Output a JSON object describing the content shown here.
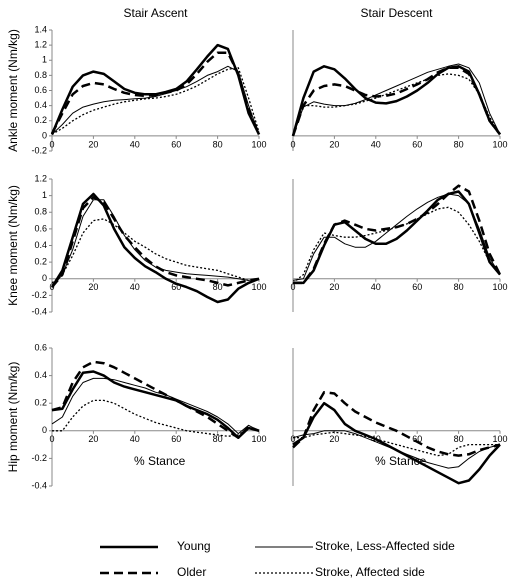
{
  "chart_data": [
    {
      "type": "line",
      "title": "Stair Ascent",
      "y_label": "Ankle moment (Nm/kg)",
      "x": [
        0,
        5,
        10,
        15,
        20,
        25,
        30,
        35,
        40,
        45,
        50,
        55,
        60,
        65,
        70,
        75,
        80,
        85,
        90,
        95,
        100
      ],
      "xlim": [
        0,
        100
      ],
      "xticks": [
        0,
        20,
        40,
        60,
        80,
        100
      ],
      "ylim": [
        -0.2,
        1.4
      ],
      "yticks": [
        -0.2,
        0,
        0.2,
        0.4,
        0.6,
        0.8,
        1,
        1.2,
        1.4
      ],
      "series": [
        {
          "name": "Young",
          "color": "#000000",
          "dash": "solid",
          "width": 2.5,
          "values": [
            0.02,
            0.35,
            0.65,
            0.8,
            0.85,
            0.82,
            0.72,
            0.62,
            0.57,
            0.55,
            0.55,
            0.58,
            0.62,
            0.72,
            0.88,
            1.05,
            1.2,
            1.15,
            0.8,
            0.3,
            0.02
          ]
        },
        {
          "name": "Older",
          "color": "#000000",
          "dash": "dashed",
          "width": 2.5,
          "values": [
            0.03,
            0.3,
            0.55,
            0.66,
            0.7,
            0.68,
            0.62,
            0.57,
            0.54,
            0.53,
            0.54,
            0.57,
            0.6,
            0.68,
            0.82,
            0.98,
            1.1,
            1.1,
            0.82,
            0.35,
            0.02
          ]
        },
        {
          "name": "Stroke, Less-Affected side",
          "color": "#000000",
          "dash": "solid",
          "width": 1,
          "values": [
            0.02,
            0.15,
            0.3,
            0.38,
            0.42,
            0.45,
            0.47,
            0.48,
            0.49,
            0.5,
            0.52,
            0.56,
            0.6,
            0.65,
            0.72,
            0.8,
            0.85,
            0.92,
            0.85,
            0.4,
            0.02
          ]
        },
        {
          "name": "Stroke, Affected side",
          "color": "#000000",
          "dash": "dotted",
          "width": 1.3,
          "values": [
            0.02,
            0.1,
            0.2,
            0.28,
            0.34,
            0.38,
            0.42,
            0.45,
            0.47,
            0.49,
            0.5,
            0.52,
            0.55,
            0.6,
            0.66,
            0.74,
            0.82,
            0.88,
            0.9,
            0.5,
            0.05
          ]
        }
      ]
    },
    {
      "type": "line",
      "title": "Stair Descent",
      "x": [
        0,
        5,
        10,
        15,
        20,
        25,
        30,
        35,
        40,
        45,
        50,
        55,
        60,
        65,
        70,
        75,
        80,
        85,
        90,
        95,
        100
      ],
      "xlim": [
        0,
        100
      ],
      "xticks": [
        0,
        20,
        40,
        60,
        80,
        100
      ],
      "ylim": [
        -0.2,
        1.4
      ],
      "series": [
        {
          "color": "#000000",
          "dash": "solid",
          "width": 2.5,
          "values": [
            0,
            0.5,
            0.85,
            0.92,
            0.88,
            0.76,
            0.62,
            0.5,
            0.44,
            0.43,
            0.46,
            0.52,
            0.6,
            0.7,
            0.82,
            0.9,
            0.92,
            0.85,
            0.55,
            0.2,
            0.02
          ]
        },
        {
          "color": "#000000",
          "dash": "dashed",
          "width": 2.5,
          "values": [
            0,
            0.4,
            0.6,
            0.66,
            0.68,
            0.66,
            0.6,
            0.54,
            0.52,
            0.53,
            0.56,
            0.62,
            0.68,
            0.75,
            0.84,
            0.9,
            0.9,
            0.82,
            0.55,
            0.2,
            0.02
          ]
        },
        {
          "color": "#000000",
          "dash": "solid",
          "width": 1,
          "values": [
            0,
            0.38,
            0.45,
            0.42,
            0.4,
            0.4,
            0.43,
            0.48,
            0.54,
            0.6,
            0.66,
            0.72,
            0.78,
            0.84,
            0.88,
            0.92,
            0.95,
            0.9,
            0.7,
            0.3,
            0.02
          ]
        },
        {
          "color": "#000000",
          "dash": "dotted",
          "width": 1.3,
          "values": [
            0,
            0.4,
            0.4,
            0.38,
            0.38,
            0.4,
            0.42,
            0.46,
            0.5,
            0.55,
            0.6,
            0.65,
            0.7,
            0.75,
            0.8,
            0.82,
            0.8,
            0.75,
            0.55,
            0.25,
            0.02
          ]
        }
      ]
    },
    {
      "type": "line",
      "y_label": "Knee moment (Nm/kg)",
      "x": [
        0,
        5,
        10,
        15,
        20,
        25,
        30,
        35,
        40,
        45,
        50,
        55,
        60,
        65,
        70,
        75,
        80,
        85,
        90,
        95,
        100
      ],
      "xlim": [
        0,
        100
      ],
      "xticks": [
        0,
        20,
        40,
        60,
        80,
        100
      ],
      "ylim": [
        -0.4,
        1.2
      ],
      "yticks": [
        -0.4,
        -0.2,
        0,
        0.2,
        0.4,
        0.6,
        0.8,
        1,
        1.2
      ],
      "series": [
        {
          "color": "#000000",
          "dash": "solid",
          "width": 2.5,
          "values": [
            -0.1,
            0.1,
            0.5,
            0.9,
            1.02,
            0.88,
            0.6,
            0.38,
            0.25,
            0.15,
            0.08,
            0,
            -0.06,
            -0.1,
            -0.15,
            -0.22,
            -0.28,
            -0.25,
            -0.12,
            -0.05,
            0
          ]
        },
        {
          "color": "#000000",
          "dash": "dashed",
          "width": 2.5,
          "values": [
            -0.1,
            0.05,
            0.45,
            0.85,
            0.98,
            0.92,
            0.72,
            0.52,
            0.38,
            0.25,
            0.15,
            0.08,
            0.04,
            0.02,
            0,
            -0.02,
            -0.05,
            -0.08,
            -0.05,
            -0.02,
            0
          ]
        },
        {
          "color": "#000000",
          "dash": "solid",
          "width": 1,
          "values": [
            -0.1,
            0.05,
            0.35,
            0.75,
            0.95,
            0.95,
            0.75,
            0.52,
            0.35,
            0.22,
            0.14,
            0.1,
            0.08,
            0.06,
            0.05,
            0.04,
            0.03,
            0.02,
            0,
            -0.02,
            0
          ]
        },
        {
          "color": "#000000",
          "dash": "dotted",
          "width": 1.3,
          "values": [
            -0.05,
            0.05,
            0.28,
            0.55,
            0.7,
            0.72,
            0.65,
            0.55,
            0.45,
            0.38,
            0.3,
            0.24,
            0.2,
            0.16,
            0.14,
            0.12,
            0.1,
            0.06,
            0.02,
            -0.02,
            0
          ]
        }
      ]
    },
    {
      "type": "line",
      "x": [
        0,
        5,
        10,
        15,
        20,
        25,
        30,
        35,
        40,
        45,
        50,
        55,
        60,
        65,
        70,
        75,
        80,
        85,
        90,
        95,
        100
      ],
      "xlim": [
        0,
        100
      ],
      "xticks": [
        0,
        20,
        40,
        60,
        80,
        100
      ],
      "ylim": [
        -0.4,
        1.2
      ],
      "series": [
        {
          "color": "#000000",
          "dash": "solid",
          "width": 2.5,
          "values": [
            -0.05,
            -0.05,
            0.1,
            0.4,
            0.65,
            0.68,
            0.58,
            0.48,
            0.42,
            0.42,
            0.48,
            0.58,
            0.7,
            0.82,
            0.95,
            1.02,
            1.05,
            0.9,
            0.55,
            0.2,
            0.05
          ]
        },
        {
          "color": "#000000",
          "dash": "dashed",
          "width": 2.5,
          "values": [
            -0.05,
            -0.05,
            0.12,
            0.42,
            0.65,
            0.7,
            0.65,
            0.6,
            0.58,
            0.6,
            0.62,
            0.66,
            0.72,
            0.8,
            0.9,
            1.02,
            1.12,
            1.05,
            0.7,
            0.3,
            0.05
          ]
        },
        {
          "color": "#000000",
          "dash": "solid",
          "width": 1,
          "values": [
            -0.02,
            0,
            0.3,
            0.5,
            0.5,
            0.42,
            0.38,
            0.38,
            0.45,
            0.55,
            0.65,
            0.75,
            0.84,
            0.92,
            0.98,
            1.02,
            1,
            0.9,
            0.6,
            0.25,
            0.05
          ]
        },
        {
          "color": "#000000",
          "dash": "dotted",
          "width": 1.3,
          "values": [
            -0.05,
            0.05,
            0.35,
            0.55,
            0.52,
            0.5,
            0.5,
            0.52,
            0.55,
            0.58,
            0.62,
            0.66,
            0.72,
            0.78,
            0.84,
            0.86,
            0.8,
            0.65,
            0.45,
            0.2,
            0.05
          ]
        }
      ]
    },
    {
      "type": "line",
      "y_label": "Hip moment (Nm/kg)",
      "x_label": "% Stance",
      "x": [
        0,
        5,
        10,
        15,
        20,
        25,
        30,
        35,
        40,
        45,
        50,
        55,
        60,
        65,
        70,
        75,
        80,
        85,
        90,
        95,
        100
      ],
      "xlim": [
        0,
        100
      ],
      "xticks": [
        0,
        20,
        40,
        60,
        80,
        100
      ],
      "ylim": [
        -0.4,
        0.6
      ],
      "yticks": [
        -0.4,
        -0.2,
        0,
        0.2,
        0.4,
        0.6
      ],
      "series": [
        {
          "color": "#000000",
          "dash": "solid",
          "width": 2.5,
          "values": [
            0.15,
            0.16,
            0.3,
            0.42,
            0.43,
            0.4,
            0.35,
            0.32,
            0.3,
            0.28,
            0.26,
            0.24,
            0.22,
            0.18,
            0.15,
            0.12,
            0.08,
            0.02,
            -0.05,
            0.02,
            0
          ]
        },
        {
          "color": "#000000",
          "dash": "dashed",
          "width": 2.5,
          "values": [
            0.15,
            0.17,
            0.35,
            0.46,
            0.5,
            0.49,
            0.46,
            0.42,
            0.38,
            0.34,
            0.3,
            0.26,
            0.22,
            0.18,
            0.14,
            0.1,
            0.05,
            0,
            -0.05,
            0.03,
            0
          ]
        },
        {
          "color": "#000000",
          "dash": "solid",
          "width": 1,
          "values": [
            0.05,
            0.1,
            0.25,
            0.35,
            0.38,
            0.38,
            0.37,
            0.35,
            0.33,
            0.31,
            0.28,
            0.26,
            0.23,
            0.2,
            0.17,
            0.14,
            0.1,
            0.05,
            -0.02,
            0.04,
            0
          ]
        },
        {
          "color": "#000000",
          "dash": "dotted",
          "width": 1.3,
          "values": [
            0,
            0,
            0.1,
            0.18,
            0.22,
            0.22,
            0.2,
            0.16,
            0.12,
            0.09,
            0.06,
            0.04,
            0.02,
            0,
            -0.01,
            -0.02,
            -0.03,
            -0.04,
            -0.03,
            0.02,
            0
          ]
        }
      ]
    },
    {
      "type": "line",
      "x_label": "% Stance",
      "x": [
        0,
        5,
        10,
        15,
        20,
        25,
        30,
        35,
        40,
        45,
        50,
        55,
        60,
        65,
        70,
        75,
        80,
        85,
        90,
        95,
        100
      ],
      "xlim": [
        0,
        100
      ],
      "xticks": [
        0,
        20,
        40,
        60,
        80,
        100
      ],
      "ylim": [
        -0.4,
        0.6
      ],
      "series": [
        {
          "color": "#000000",
          "dash": "solid",
          "width": 2.5,
          "values": [
            -0.1,
            -0.05,
            0.1,
            0.2,
            0.15,
            0.05,
            0,
            -0.03,
            -0.06,
            -0.1,
            -0.14,
            -0.18,
            -0.22,
            -0.26,
            -0.3,
            -0.34,
            -0.38,
            -0.36,
            -0.28,
            -0.18,
            -0.1
          ]
        },
        {
          "color": "#000000",
          "dash": "dashed",
          "width": 2.5,
          "values": [
            -0.12,
            -0.05,
            0.15,
            0.28,
            0.27,
            0.2,
            0.14,
            0.1,
            0.06,
            0.03,
            0,
            -0.04,
            -0.08,
            -0.12,
            -0.15,
            -0.17,
            -0.18,
            -0.17,
            -0.14,
            -0.12,
            -0.1
          ]
        },
        {
          "color": "#000000",
          "dash": "solid",
          "width": 1,
          "values": [
            -0.05,
            -0.03,
            -0.02,
            0,
            0,
            0,
            -0.02,
            -0.05,
            -0.08,
            -0.11,
            -0.14,
            -0.17,
            -0.2,
            -0.23,
            -0.25,
            -0.27,
            -0.26,
            -0.2,
            -0.15,
            -0.12,
            -0.1
          ]
        },
        {
          "color": "#000000",
          "dash": "dotted",
          "width": 1.3,
          "values": [
            -0.05,
            -0.05,
            -0.03,
            -0.02,
            -0.01,
            -0.02,
            -0.03,
            -0.04,
            -0.06,
            -0.08,
            -0.1,
            -0.12,
            -0.14,
            -0.16,
            -0.18,
            -0.17,
            -0.12,
            -0.1,
            -0.1,
            -0.1,
            -0.1
          ]
        }
      ]
    }
  ]
}
